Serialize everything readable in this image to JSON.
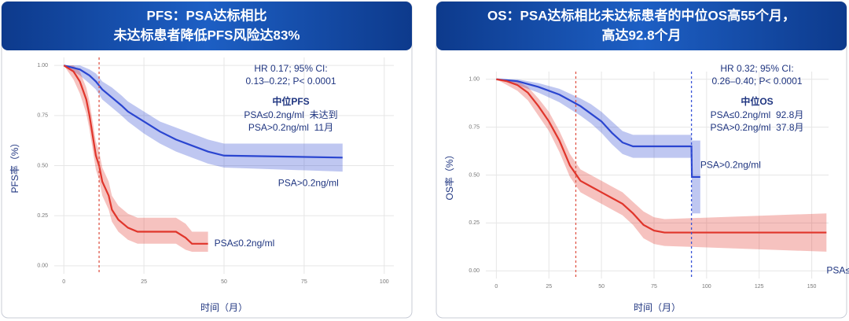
{
  "chart_data": [
    {
      "type": "line",
      "title_lines": [
        "PFS：PSA达标相比",
        "未达标患者降低PFS风险达83%"
      ],
      "x_label": "时间（月）",
      "y_label": "PFS率（%）",
      "xlim": [
        -3,
        103
      ],
      "xticks": [
        0,
        25,
        50,
        75,
        100
      ],
      "ylim": [
        -0.04,
        1.04
      ],
      "yticks": [
        {
          "value": 0,
          "label": "0.00"
        },
        {
          "value": 0.25,
          "label": "0.25"
        },
        {
          "value": 0.5,
          "label": "0.50"
        },
        {
          "value": 0.75,
          "label": "0.75"
        },
        {
          "value": 1,
          "label": "1.00"
        }
      ],
      "grid": true,
      "annotations": [
        "HR 0.17; 95% CI:",
        "0.13–0.22; P< 0.0001"
      ],
      "median_title": "中位PFS",
      "median_rows": [
        "PSA≤0.2ng/ml  未达到",
        "PSA>0.2ng/ml  11月"
      ],
      "median_lines": [
        {
          "x": 11,
          "color": "#e0584a"
        }
      ],
      "series": [
        {
          "name": "PSA>0.2ng/ml",
          "color": "#2a45d0",
          "x": [
            0,
            5,
            8,
            10,
            12,
            15,
            18,
            20,
            25,
            30,
            35,
            40,
            45,
            50,
            87
          ],
          "values": [
            1,
            0.98,
            0.95,
            0.92,
            0.88,
            0.84,
            0.8,
            0.77,
            0.72,
            0.67,
            0.63,
            0.6,
            0.57,
            0.55,
            0.54
          ],
          "upper": [
            1,
            1,
            0.98,
            0.96,
            0.92,
            0.89,
            0.85,
            0.82,
            0.77,
            0.72,
            0.69,
            0.66,
            0.63,
            0.61,
            0.61
          ],
          "lower": [
            1,
            0.95,
            0.91,
            0.88,
            0.83,
            0.79,
            0.75,
            0.72,
            0.66,
            0.61,
            0.57,
            0.54,
            0.51,
            0.49,
            0.47
          ]
        },
        {
          "name": "PSA≤0.2ng/ml",
          "color": "#e0352b",
          "x": [
            0,
            3,
            5,
            7,
            8,
            9,
            10,
            11,
            12,
            14,
            15,
            17,
            20,
            23,
            35,
            38,
            40,
            45
          ],
          "values": [
            1,
            0.97,
            0.92,
            0.83,
            0.75,
            0.65,
            0.55,
            0.5,
            0.42,
            0.35,
            0.28,
            0.23,
            0.19,
            0.17,
            0.17,
            0.14,
            0.11,
            0.11
          ],
          "upper": [
            1,
            1,
            0.97,
            0.89,
            0.82,
            0.72,
            0.62,
            0.57,
            0.49,
            0.42,
            0.35,
            0.3,
            0.26,
            0.24,
            0.24,
            0.21,
            0.17,
            0.17
          ],
          "lower": [
            1,
            0.93,
            0.86,
            0.76,
            0.68,
            0.58,
            0.48,
            0.43,
            0.35,
            0.28,
            0.22,
            0.17,
            0.13,
            0.11,
            0.11,
            0.08,
            0.07,
            0.07
          ]
        }
      ]
    },
    {
      "type": "line",
      "title_lines": [
        "OS：PSA达标相比未达标患者的中位OS高55个月，",
        "高达92.8个月"
      ],
      "x_label": "时间（月）",
      "y_label": "OS率（%）",
      "xlim": [
        -5,
        158
      ],
      "xticks": [
        0,
        25,
        50,
        75,
        100,
        125,
        150
      ],
      "ylim": [
        -0.04,
        1.04
      ],
      "yticks": [
        {
          "value": 0,
          "label": "0.00"
        },
        {
          "value": 0.25,
          "label": "0.25"
        },
        {
          "value": 0.5,
          "label": "0.50"
        },
        {
          "value": 0.75,
          "label": "0.75"
        },
        {
          "value": 1,
          "label": "1.00"
        }
      ],
      "grid": true,
      "annotations": [
        "HR 0.32; 95% CI:",
        "0.26–0.40; P< 0.0001"
      ],
      "median_title": "中位OS",
      "median_rows": [
        "PSA≤0.2ng/ml  92.8月",
        "PSA>0.2ng/ml  37.8月"
      ],
      "median_lines": [
        {
          "x": 37.8,
          "color": "#e0584a"
        },
        {
          "x": 92.8,
          "color": "#3a55d8"
        }
      ],
      "series": [
        {
          "name": "PSA>0.2ng/ml",
          "color": "#2a45d0",
          "x": [
            0,
            10,
            20,
            30,
            40,
            45,
            50,
            55,
            60,
            65,
            92.8,
            93,
            97
          ],
          "values": [
            1,
            0.99,
            0.96,
            0.92,
            0.86,
            0.82,
            0.78,
            0.72,
            0.67,
            0.65,
            0.65,
            0.49,
            0.49
          ],
          "upper": [
            1,
            1,
            0.98,
            0.95,
            0.9,
            0.87,
            0.83,
            0.78,
            0.73,
            0.71,
            0.71,
            0.68,
            0.68
          ],
          "lower": [
            1,
            0.97,
            0.93,
            0.88,
            0.81,
            0.77,
            0.72,
            0.66,
            0.61,
            0.59,
            0.59,
            0.3,
            0.3
          ]
        },
        {
          "name": "PSA≤0.2ng/ml",
          "color": "#e0352b",
          "x": [
            0,
            5,
            10,
            15,
            20,
            25,
            30,
            35,
            40,
            45,
            50,
            55,
            60,
            65,
            70,
            75,
            80,
            157
          ],
          "values": [
            1,
            0.99,
            0.97,
            0.93,
            0.86,
            0.78,
            0.68,
            0.55,
            0.47,
            0.44,
            0.41,
            0.38,
            0.35,
            0.3,
            0.24,
            0.21,
            0.2,
            0.2
          ],
          "upper": [
            1,
            1,
            0.99,
            0.96,
            0.9,
            0.83,
            0.73,
            0.61,
            0.53,
            0.5,
            0.47,
            0.44,
            0.41,
            0.36,
            0.31,
            0.28,
            0.27,
            0.3
          ],
          "lower": [
            1,
            0.97,
            0.94,
            0.89,
            0.81,
            0.73,
            0.62,
            0.49,
            0.41,
            0.38,
            0.35,
            0.32,
            0.29,
            0.24,
            0.17,
            0.14,
            0.13,
            0.1
          ]
        }
      ]
    }
  ]
}
